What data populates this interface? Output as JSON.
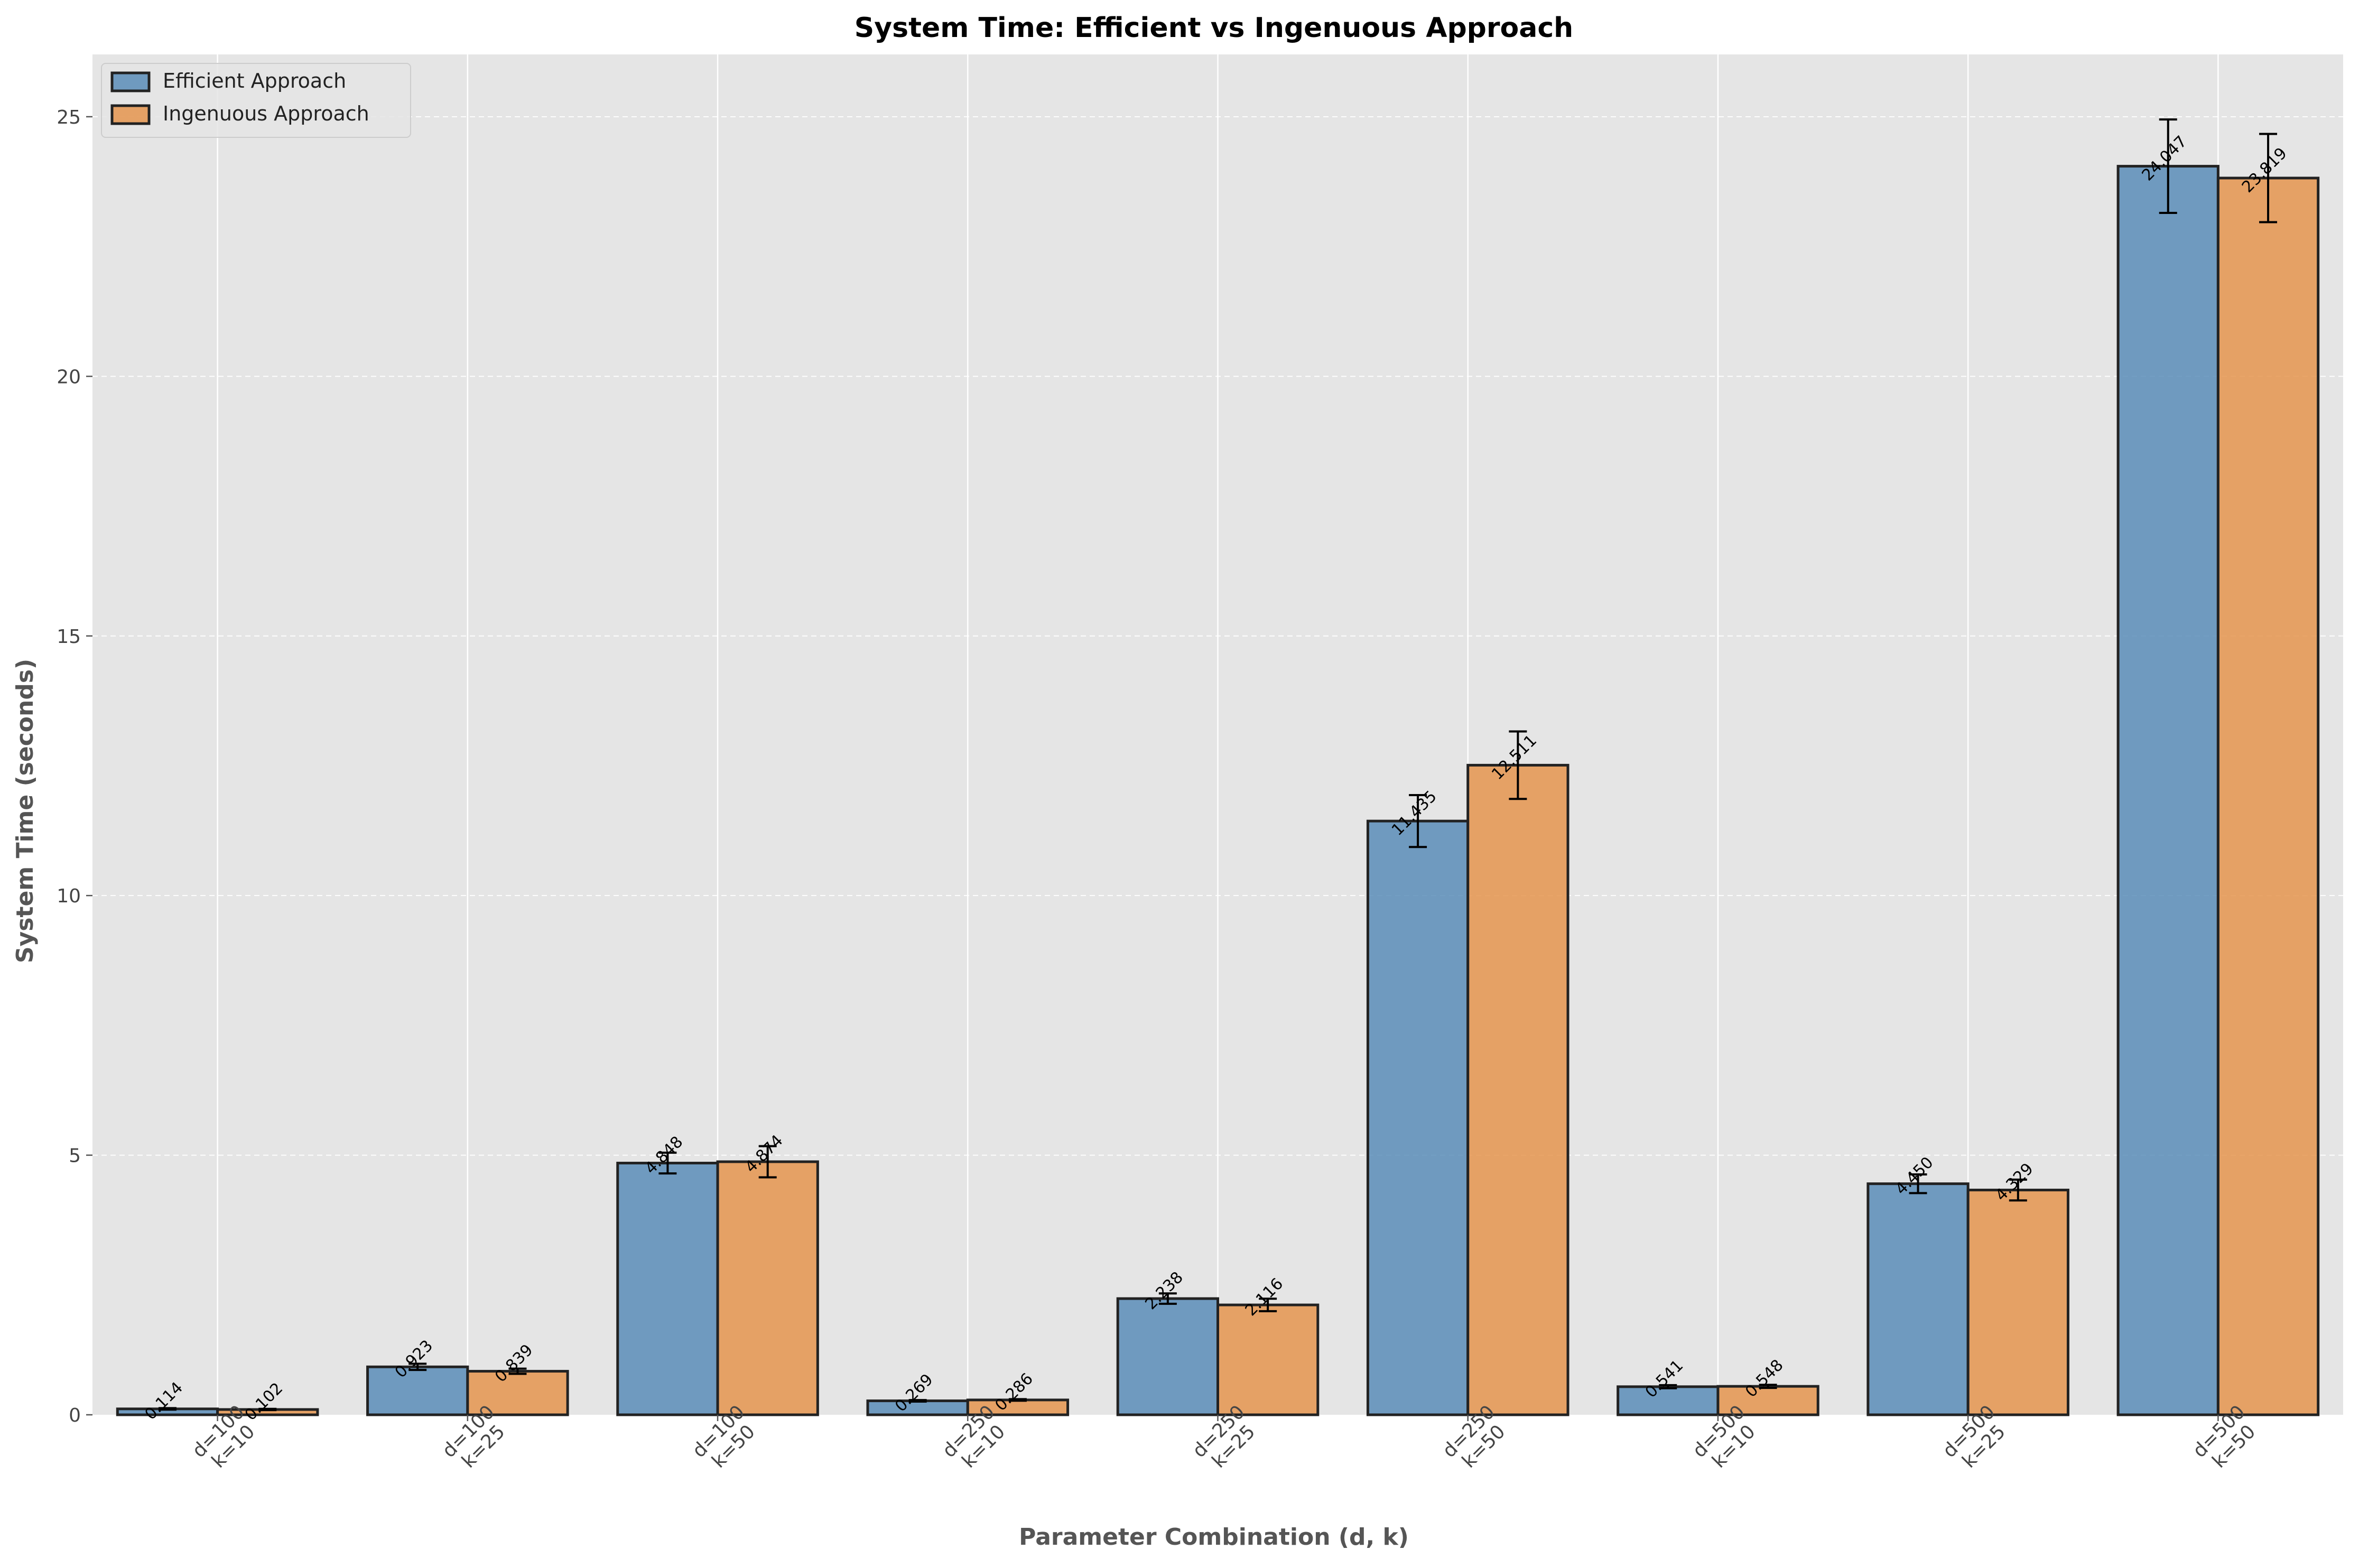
{
  "chart_data": {
    "type": "bar",
    "title": "System Time: Efficient vs Ingenuous Approach",
    "xlabel": "Parameter Combination (d, k)",
    "ylabel": "System Time (seconds)",
    "categories": [
      [
        "d=100",
        "k=10"
      ],
      [
        "d=100",
        "k=25"
      ],
      [
        "d=100",
        "k=50"
      ],
      [
        "d=250",
        "k=10"
      ],
      [
        "d=250",
        "k=25"
      ],
      [
        "d=250",
        "k=50"
      ],
      [
        "d=500",
        "k=10"
      ],
      [
        "d=500",
        "k=25"
      ],
      [
        "d=500",
        "k=50"
      ]
    ],
    "series": [
      {
        "name": "Efficient Approach",
        "color": "#5b8db8",
        "values": [
          0.114,
          0.923,
          4.848,
          0.269,
          2.238,
          11.435,
          0.541,
          4.45,
          24.047
        ],
        "labels": [
          "0.114",
          "0.923",
          "4.848",
          "0.269",
          "2.238",
          "11.435",
          "0.541",
          "4.450",
          "24.047"
        ],
        "errors": [
          0.015,
          0.06,
          0.2,
          0.015,
          0.1,
          0.5,
          0.03,
          0.18,
          0.9
        ]
      },
      {
        "name": "Ingenuous Approach",
        "color": "#e5954f",
        "values": [
          0.102,
          0.839,
          4.874,
          0.286,
          2.116,
          12.511,
          0.548,
          4.329,
          23.819
        ],
        "labels": [
          "0.102",
          "0.839",
          "4.874",
          "0.286",
          "2.116",
          "12.511",
          "0.548",
          "4.329",
          "23.819"
        ],
        "errors": [
          0.012,
          0.05,
          0.3,
          0.015,
          0.12,
          0.65,
          0.03,
          0.2,
          0.85
        ]
      }
    ],
    "yticks": [
      0,
      5,
      10,
      15,
      20,
      25
    ],
    "ylim": [
      0,
      26.2
    ],
    "grid": true,
    "legend": "top-left"
  }
}
